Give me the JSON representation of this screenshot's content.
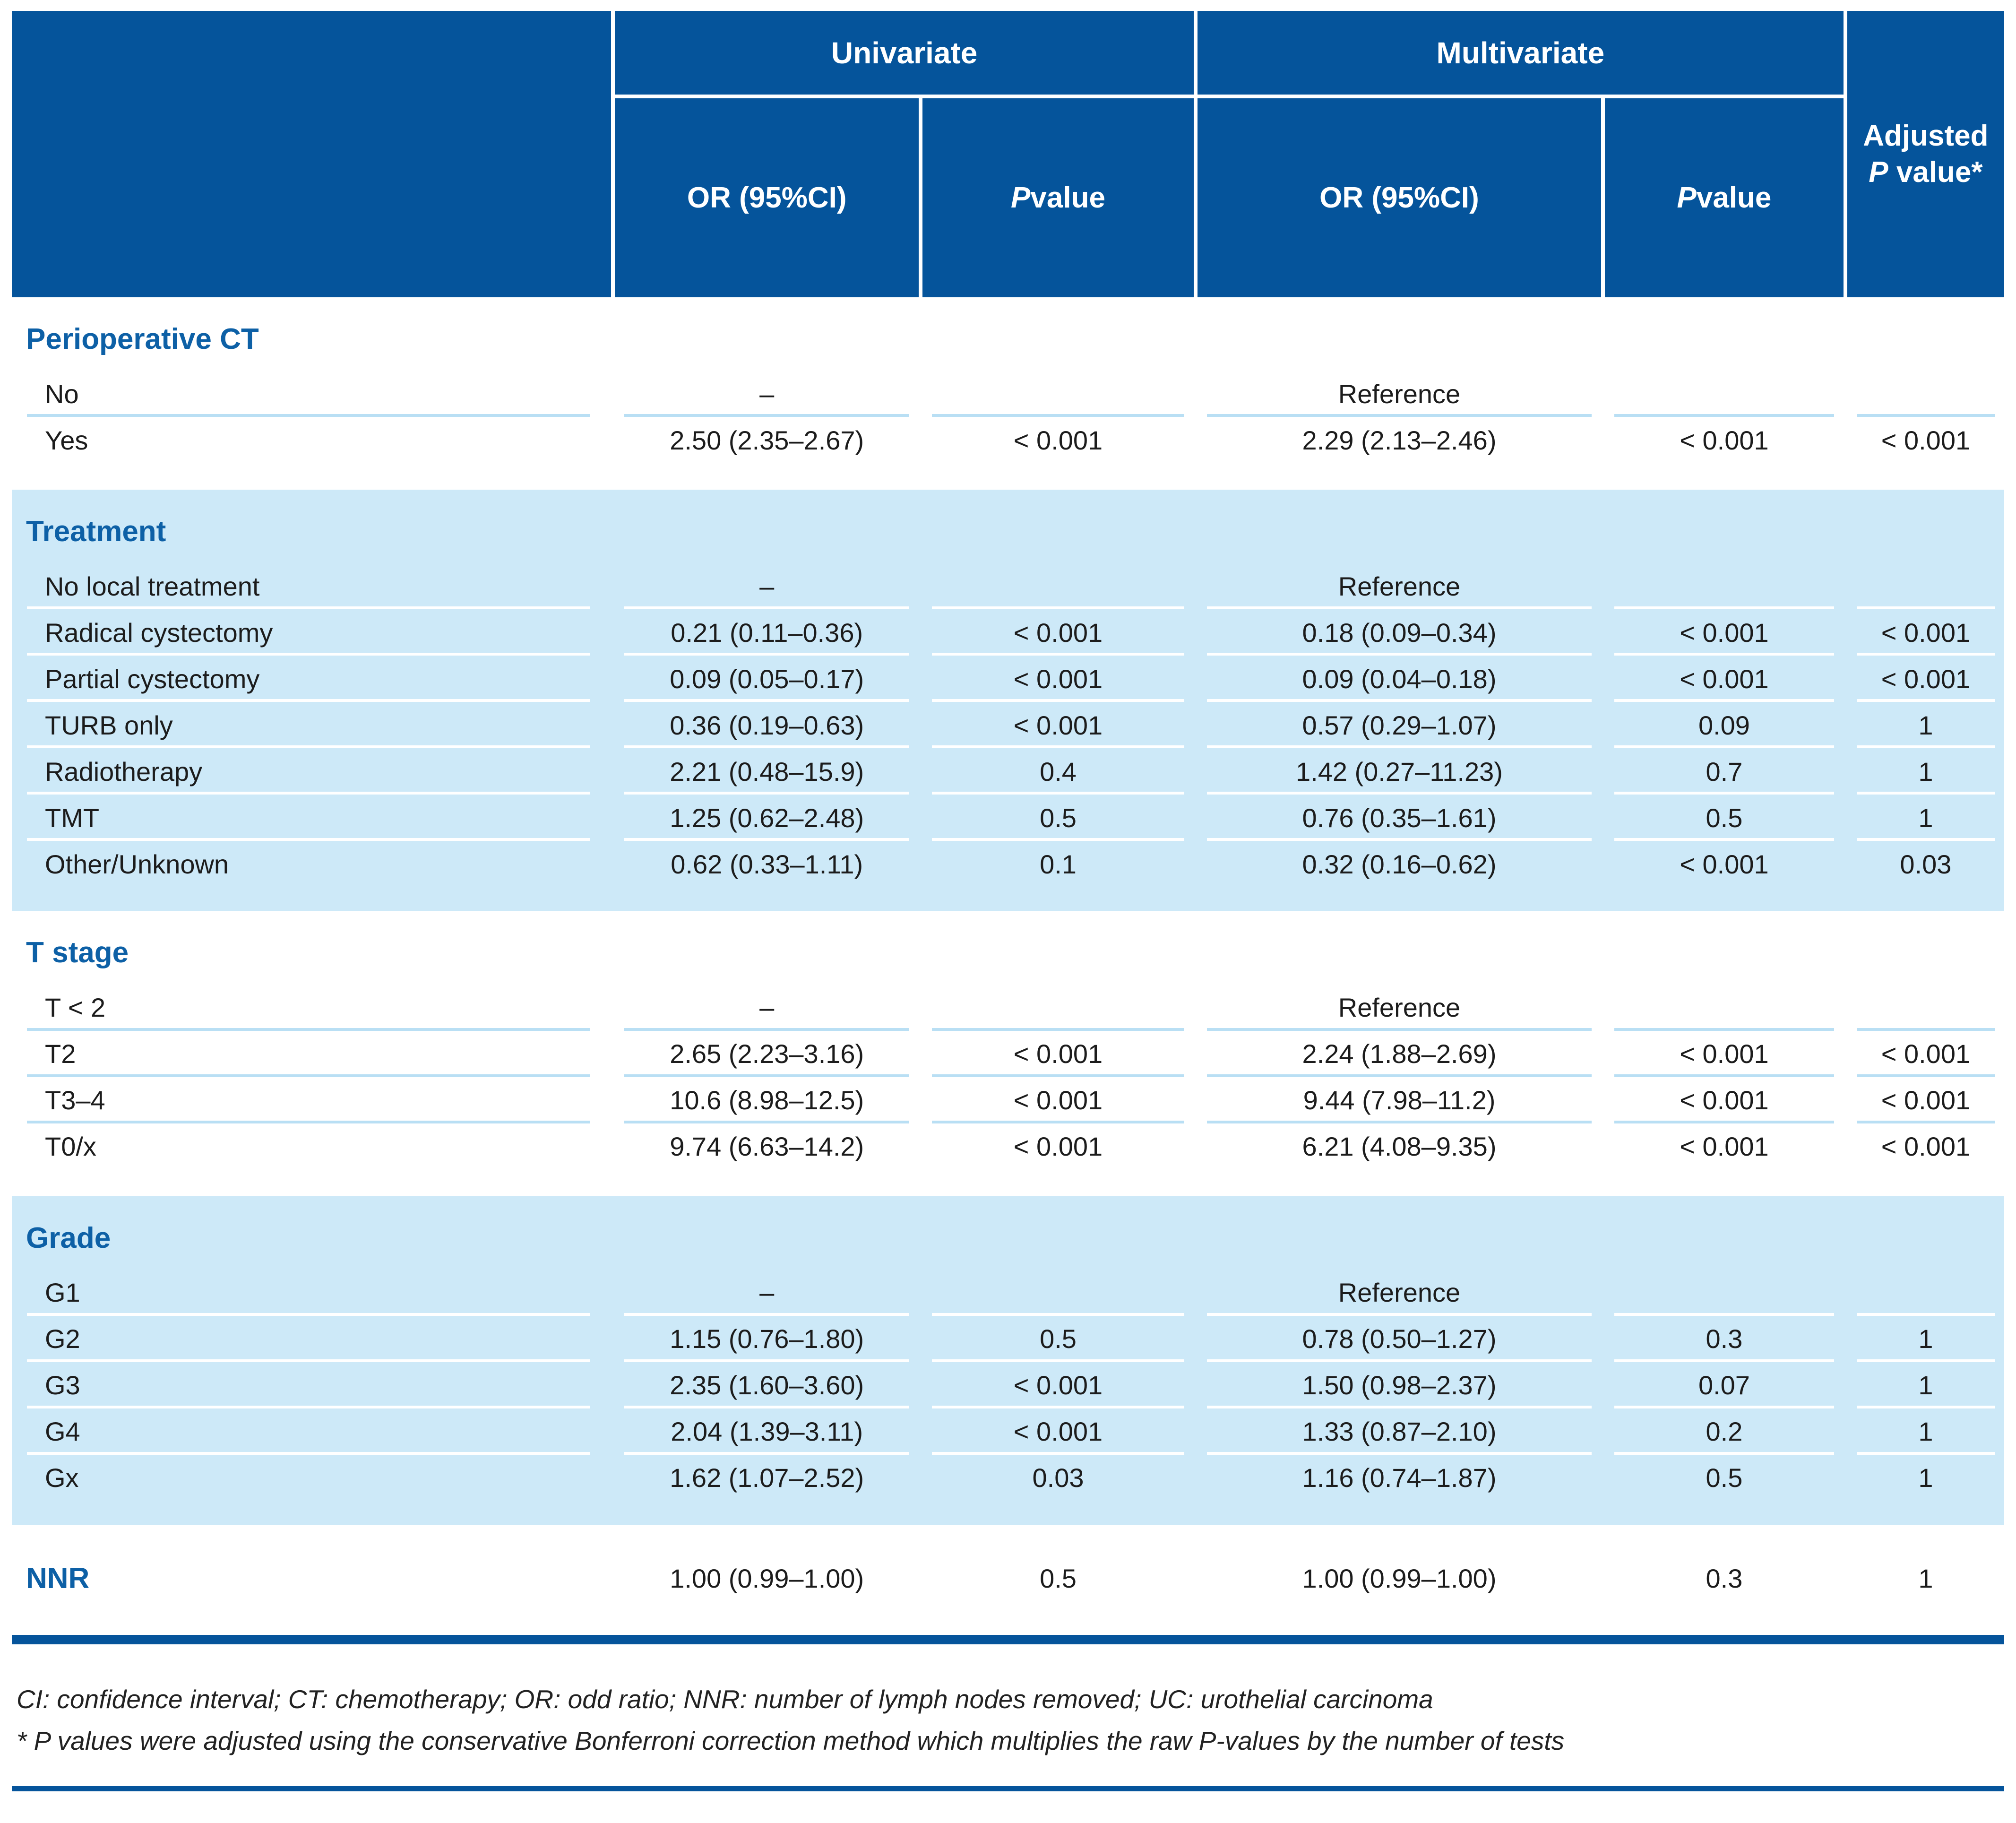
{
  "table": {
    "header": {
      "group_univariate": "Univariate",
      "group_multivariate": "Multivariate",
      "col_or_univariate": "OR (95%CI)",
      "col_or_multivariate": "OR (95%CI)",
      "p_label": "P",
      "p_rest": " value",
      "adjusted_line1": "Adjusted",
      "adjusted_p": "P",
      "adjusted_rest": " value*"
    },
    "sections": [
      {
        "title": "Perioperative CT",
        "tone": "white",
        "rows": [
          [
            "No",
            "–",
            "",
            "Reference",
            "",
            ""
          ],
          [
            "Yes",
            "2.50 (2.35–2.67)",
            "< 0.001",
            "2.29 (2.13–2.46)",
            "< 0.001",
            "< 0.001"
          ]
        ]
      },
      {
        "title": "Treatment",
        "tone": "blue",
        "rows": [
          [
            "No local treatment",
            "–",
            "",
            "Reference",
            "",
            ""
          ],
          [
            "Radical cystectomy",
            "0.21 (0.11–0.36)",
            "< 0.001",
            "0.18 (0.09–0.34)",
            "< 0.001",
            "< 0.001"
          ],
          [
            "Partial cystectomy",
            "0.09 (0.05–0.17)",
            "< 0.001",
            "0.09 (0.04–0.18)",
            "< 0.001",
            "< 0.001"
          ],
          [
            "TURB only",
            "0.36 (0.19–0.63)",
            "< 0.001",
            "0.57 (0.29–1.07)",
            "0.09",
            "1"
          ],
          [
            "Radiotherapy",
            "2.21 (0.48–15.9)",
            "0.4",
            "1.42 (0.27–11.23)",
            "0.7",
            "1"
          ],
          [
            "TMT",
            "1.25 (0.62–2.48)",
            "0.5",
            "0.76 (0.35–1.61)",
            "0.5",
            "1"
          ],
          [
            "Other/Unknown",
            "0.62 (0.33–1.11)",
            "0.1",
            "0.32 (0.16–0.62)",
            "< 0.001",
            "0.03"
          ]
        ]
      },
      {
        "title": "T stage",
        "tone": "white",
        "rows": [
          [
            "T < 2",
            "–",
            "",
            "Reference",
            "",
            ""
          ],
          [
            "T2",
            "2.65 (2.23–3.16)",
            "< 0.001",
            "2.24 (1.88–2.69)",
            "< 0.001",
            "< 0.001"
          ],
          [
            "T3–4",
            "10.6 (8.98–12.5)",
            "< 0.001",
            "9.44 (7.98–11.2)",
            "< 0.001",
            "< 0.001"
          ],
          [
            "T0/x",
            "9.74 (6.63–14.2)",
            "< 0.001",
            "6.21 (4.08–9.35)",
            "< 0.001",
            "< 0.001"
          ]
        ]
      },
      {
        "title": "Grade",
        "tone": "blue",
        "rows": [
          [
            "G1",
            "–",
            "",
            "Reference",
            "",
            ""
          ],
          [
            "G2",
            "1.15 (0.76–1.80)",
            "0.5",
            "0.78 (0.50–1.27)",
            "0.3",
            "1"
          ],
          [
            "G3",
            "2.35 (1.60–3.60)",
            "< 0.001",
            "1.50 (0.98–2.37)",
            "0.07",
            "1"
          ],
          [
            "G4",
            "2.04 (1.39–3.11)",
            "< 0.001",
            "1.33 (0.87–2.10)",
            "0.2",
            "1"
          ],
          [
            "Gx",
            "1.62 (1.07–2.52)",
            "0.03",
            "1.16 (0.74–1.87)",
            "0.5",
            "1"
          ]
        ]
      },
      {
        "title": "NNR",
        "tone": "white",
        "title_as_row": true,
        "rows": [
          [
            "NNR",
            "1.00 (0.99–1.00)",
            "0.5",
            "1.00 (0.99–1.00)",
            "0.3",
            "1"
          ]
        ]
      }
    ],
    "footnotes": [
      "CI: confidence interval; CT: chemotherapy; OR: odd ratio; NNR: number of lymph nodes removed; UC: urothelial carcinoma",
      "* P values were adjusted using the conservative Bonferroni correction method which multiplies the raw P-values by the number of tests"
    ],
    "colors": {
      "header_bg": "#05549b",
      "band_bg": "#cde9f8",
      "section_title": "#0d60a6",
      "separator_on_white": "#b9dff4",
      "separator_on_band": "#ffffff",
      "rule": "#05549b",
      "text": "#1c1c1c"
    }
  }
}
